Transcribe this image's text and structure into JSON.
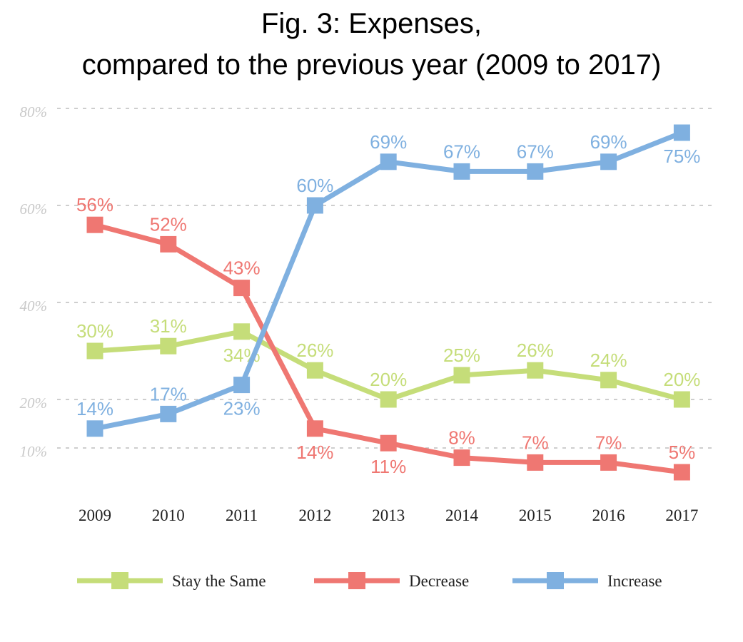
{
  "chart_data": {
    "type": "line",
    "title_line1": "Fig. 3: Expenses,",
    "title_line2": "compared to the previous year (2009 to 2017)",
    "categories": [
      "2009",
      "2010",
      "2011",
      "2012",
      "2013",
      "2014",
      "2015",
      "2016",
      "2017"
    ],
    "y_ticks": [
      {
        "value": 80,
        "label": "80%"
      },
      {
        "value": 60,
        "label": "60%"
      },
      {
        "value": 40,
        "label": "40%"
      },
      {
        "value": 20,
        "label": "20%"
      },
      {
        "value": 10,
        "label": "10%"
      }
    ],
    "ylim": [
      0,
      80
    ],
    "grid": true,
    "legend_position": "bottom",
    "series": [
      {
        "name": "Stay the Same",
        "color": "#c5dd79",
        "values": [
          30,
          31,
          34,
          26,
          20,
          25,
          26,
          24,
          20
        ]
      },
      {
        "name": "Decrease",
        "color": "#ef7772",
        "values": [
          56,
          52,
          43,
          14,
          11,
          8,
          7,
          7,
          5
        ]
      },
      {
        "name": "Increase",
        "color": "#7fb0e0",
        "values": [
          14,
          17,
          23,
          60,
          69,
          67,
          67,
          69,
          75
        ]
      }
    ]
  }
}
